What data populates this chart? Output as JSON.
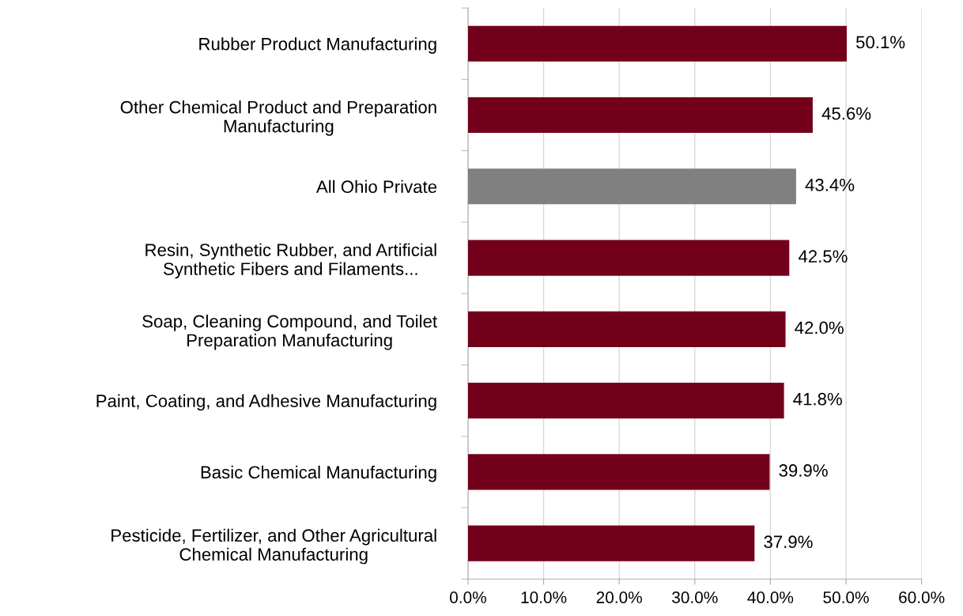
{
  "chart_data": {
    "type": "bar",
    "orientation": "horizontal",
    "categories": [
      "Rubber Product Manufacturing",
      "Other Chemical Product and Preparation\nManufacturing",
      "All Ohio Private",
      "Resin, Synthetic Rubber, and Artificial\nSynthetic Fibers and Filaments...",
      "Soap, Cleaning Compound, and Toilet\nPreparation Manufacturing",
      "Paint, Coating, and Adhesive Manufacturing",
      "Basic Chemical Manufacturing",
      "Pesticide, Fertilizer, and Other Agricultural\nChemical Manufacturing"
    ],
    "values": [
      50.1,
      45.6,
      43.4,
      42.5,
      42.0,
      41.8,
      39.9,
      37.9
    ],
    "value_labels": [
      "50.1%",
      "45.6%",
      "43.4%",
      "42.5%",
      "42.0%",
      "41.8%",
      "39.9%",
      "37.9%"
    ],
    "colors": [
      "#73001a",
      "#73001a",
      "#808080",
      "#73001a",
      "#73001a",
      "#73001a",
      "#73001a",
      "#73001a"
    ],
    "xlim": [
      0,
      60
    ],
    "xticks": [
      {
        "value": 0,
        "label": "0.0%"
      },
      {
        "value": 10,
        "label": "10.0%"
      },
      {
        "value": 20,
        "label": "20.0%"
      },
      {
        "value": 30,
        "label": "30.0%"
      },
      {
        "value": 40,
        "label": "40.0%"
      },
      {
        "value": 50,
        "label": "50.0%"
      },
      {
        "value": 60,
        "label": "60.0%"
      }
    ],
    "grid": "x",
    "legend": false
  }
}
